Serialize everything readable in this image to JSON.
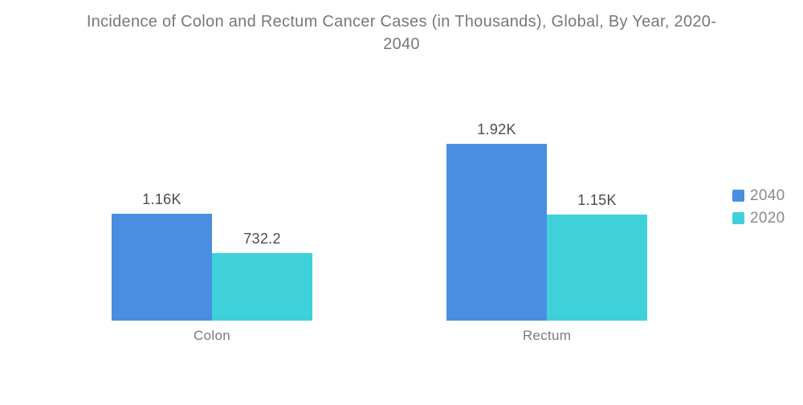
{
  "title": "Incidence of Colon and Rectum Cancer Cases (in Thousands), Global, By Year, 2020-2040",
  "chart_data": {
    "type": "bar",
    "title": "Incidence of Colon and Rectum Cancer Cases (in Thousands), Global, By Year, 2020-2040",
    "categories": [
      "Colon",
      "Rectum"
    ],
    "series": [
      {
        "name": "2040",
        "color": "#4a8ee2",
        "values": [
          1160,
          1920
        ],
        "value_labels": [
          "1.16K",
          "1.92K"
        ]
      },
      {
        "name": "2020",
        "color": "#3fd1d9",
        "values": [
          732.2,
          1150
        ],
        "value_labels": [
          "732.2",
          "1.15K"
        ]
      }
    ],
    "units": "thousands",
    "ylim": [
      0,
      1920
    ],
    "grid": false,
    "axes_visible": false,
    "legend_position": "right",
    "legend_items": [
      {
        "label": "2040",
        "color": "#4a8ee2"
      },
      {
        "label": "2020",
        "color": "#3fd1d9"
      }
    ]
  }
}
